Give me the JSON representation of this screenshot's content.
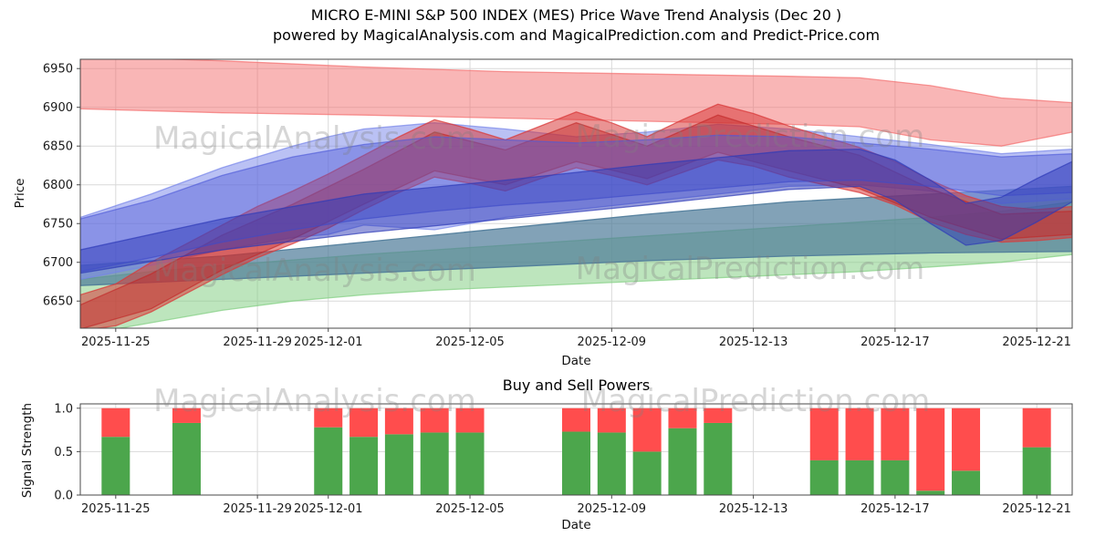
{
  "header": {
    "title_line1": "MICRO E-MINI S&P 500 INDEX (MES) Price Wave Trend Analysis (Dec 20 )",
    "title_line2": "powered by MagicalAnalysis.com and MagicalPrediction.com and Predict-Price.com"
  },
  "watermarks": {
    "analysis": "MagicalAnalysis.com",
    "prediction": "MagicalPrediction.com"
  },
  "colors": {
    "grid": "#d9d9d9",
    "frame": "#4a4a4a",
    "buy_green": "#4ca64c",
    "sell_red": "#ff4d4d"
  },
  "chart_data": {
    "price_chart": {
      "type": "area",
      "title": "MICRO E-MINI S&P 500 INDEX (MES) Price Wave Trend Analysis (Dec 20 )",
      "xlabel": "Date",
      "ylabel": "Price",
      "day0_date": "2025-11-24",
      "xlim": [
        0,
        28
      ],
      "ylim": [
        6615,
        6962
      ],
      "grid": true,
      "yticks": [
        {
          "v": 6650,
          "label": "6650"
        },
        {
          "v": 6700,
          "label": "6700"
        },
        {
          "v": 6750,
          "label": "6750"
        },
        {
          "v": 6800,
          "label": "6800"
        },
        {
          "v": 6850,
          "label": "6850"
        },
        {
          "v": 6900,
          "label": "6900"
        },
        {
          "v": 6950,
          "label": "6950"
        }
      ],
      "xticks": [
        {
          "day": 1,
          "label": "2025-11-25"
        },
        {
          "day": 5,
          "label": "2025-11-29"
        },
        {
          "day": 7,
          "label": "2025-12-01"
        },
        {
          "day": 11,
          "label": "2025-12-05"
        },
        {
          "day": 15,
          "label": "2025-12-09"
        },
        {
          "day": 19,
          "label": "2025-12-13"
        },
        {
          "day": 23,
          "label": "2025-12-17"
        },
        {
          "day": 27,
          "label": "2025-12-21"
        }
      ],
      "bands": [
        {
          "name": "upper-forecast-pink",
          "color": "#f46d6d",
          "opacity": 0.5,
          "points": [
            [
              0,
              6898,
              6966
            ],
            [
              4,
              6893,
              6960
            ],
            [
              8,
              6890,
              6952
            ],
            [
              12,
              6886,
              6946
            ],
            [
              16,
              6882,
              6943
            ],
            [
              20,
              6878,
              6940
            ],
            [
              22,
              6875,
              6938
            ],
            [
              24,
              6858,
              6928
            ],
            [
              26,
              6850,
              6912
            ],
            [
              28,
              6868,
              6906
            ]
          ]
        },
        {
          "name": "lower-support-green",
          "color": "#86d086",
          "opacity": 0.55,
          "points": [
            [
              0,
              6606,
              6678
            ],
            [
              2,
              6622,
              6688
            ],
            [
              4,
              6638,
              6696
            ],
            [
              6,
              6650,
              6703
            ],
            [
              8,
              6658,
              6710
            ],
            [
              10,
              6664,
              6716
            ],
            [
              12,
              6668,
              6722
            ],
            [
              14,
              6672,
              6728
            ],
            [
              16,
              6676,
              6734
            ],
            [
              18,
              6680,
              6740
            ],
            [
              20,
              6684,
              6746
            ],
            [
              22,
              6688,
              6752
            ],
            [
              24,
              6694,
              6758
            ],
            [
              26,
              6700,
              6766
            ],
            [
              28,
              6710,
              6778
            ]
          ]
        },
        {
          "name": "mid-slate",
          "color": "#4d7a99",
          "opacity": 0.7,
          "points": [
            [
              0,
              6670,
              6696
            ],
            [
              4,
              6678,
              6708
            ],
            [
              8,
              6686,
              6726
            ],
            [
              12,
              6694,
              6744
            ],
            [
              16,
              6702,
              6762
            ],
            [
              20,
              6708,
              6778
            ],
            [
              24,
              6712,
              6788
            ],
            [
              28,
              6714,
              6798
            ]
          ]
        },
        {
          "name": "trend-blue-wide",
          "color": "#7583ea",
          "opacity": 0.5,
          "points": [
            [
              0,
              6678,
              6758
            ],
            [
              2,
              6696,
              6788
            ],
            [
              4,
              6716,
              6822
            ],
            [
              6,
              6732,
              6850
            ],
            [
              7,
              6736,
              6862
            ],
            [
              8,
              6748,
              6872
            ],
            [
              10,
              6742,
              6880
            ],
            [
              12,
              6758,
              6872
            ],
            [
              14,
              6768,
              6862
            ],
            [
              16,
              6778,
              6868
            ],
            [
              18,
              6788,
              6878
            ],
            [
              20,
              6798,
              6872
            ],
            [
              22,
              6800,
              6862
            ],
            [
              24,
              6792,
              6852
            ],
            [
              26,
              6776,
              6840
            ],
            [
              28,
              6782,
              6846
            ]
          ]
        },
        {
          "name": "wave-red-outer",
          "color": "#d93a3a",
          "opacity": 0.55,
          "points": [
            [
              0,
              6612,
              6658
            ],
            [
              1,
              6618,
              6672
            ],
            [
              2,
              6636,
              6700
            ],
            [
              3,
              6660,
              6724
            ],
            [
              4,
              6684,
              6748
            ],
            [
              5,
              6706,
              6772
            ],
            [
              6,
              6724,
              6792
            ],
            [
              7,
              6744,
              6814
            ],
            [
              8,
              6768,
              6838
            ],
            [
              9,
              6790,
              6862
            ],
            [
              10,
              6810,
              6884
            ],
            [
              11,
              6802,
              6872
            ],
            [
              12,
              6792,
              6858
            ],
            [
              13,
              6808,
              6876
            ],
            [
              14,
              6822,
              6894
            ],
            [
              15,
              6812,
              6880
            ],
            [
              16,
              6800,
              6862
            ],
            [
              17,
              6816,
              6884
            ],
            [
              18,
              6832,
              6904
            ],
            [
              19,
              6824,
              6892
            ],
            [
              20,
              6810,
              6876
            ],
            [
              21,
              6800,
              6862
            ],
            [
              22,
              6790,
              6848
            ],
            [
              23,
              6774,
              6830
            ],
            [
              24,
              6752,
              6806
            ],
            [
              25,
              6736,
              6786
            ],
            [
              26,
              6726,
              6772
            ],
            [
              27,
              6728,
              6768
            ],
            [
              28,
              6732,
              6772
            ]
          ]
        },
        {
          "name": "wave-red-inner",
          "color": "#c22828",
          "opacity": 0.45,
          "points": [
            [
              0,
              6614,
              6645
            ],
            [
              2,
              6640,
              6685
            ],
            [
              4,
              6690,
              6735
            ],
            [
              6,
              6730,
              6775
            ],
            [
              8,
              6775,
              6820
            ],
            [
              10,
              6818,
              6868
            ],
            [
              12,
              6800,
              6845
            ],
            [
              14,
              6830,
              6880
            ],
            [
              16,
              6808,
              6850
            ],
            [
              18,
              6842,
              6890
            ],
            [
              20,
              6818,
              6862
            ],
            [
              22,
              6795,
              6838
            ],
            [
              24,
              6758,
              6795
            ],
            [
              26,
              6730,
              6762
            ],
            [
              28,
              6736,
              6766
            ]
          ]
        },
        {
          "name": "trend-blue-mid",
          "color": "#4f5ad8",
          "opacity": 0.45,
          "points": [
            [
              0,
              6688,
              6756
            ],
            [
              2,
              6706,
              6780
            ],
            [
              4,
              6726,
              6812
            ],
            [
              6,
              6742,
              6836
            ],
            [
              8,
              6756,
              6852
            ],
            [
              10,
              6766,
              6862
            ],
            [
              12,
              6774,
              6858
            ],
            [
              14,
              6780,
              6854
            ],
            [
              16,
              6788,
              6858
            ],
            [
              18,
              6796,
              6864
            ],
            [
              20,
              6804,
              6862
            ],
            [
              22,
              6806,
              6854
            ],
            [
              24,
              6798,
              6846
            ],
            [
              26,
              6786,
              6836
            ],
            [
              28,
              6790,
              6840
            ]
          ]
        },
        {
          "name": "trend-blue-dark",
          "color": "#2e3ab8",
          "opacity": 0.5,
          "points": [
            [
              0,
              6686,
              6716
            ],
            [
              4,
              6716,
              6756
            ],
            [
              8,
              6738,
              6788
            ],
            [
              12,
              6756,
              6806
            ],
            [
              16,
              6774,
              6826
            ],
            [
              20,
              6794,
              6844
            ],
            [
              22,
              6798,
              6846
            ],
            [
              23,
              6780,
              6832
            ],
            [
              24,
              6750,
              6806
            ],
            [
              25,
              6722,
              6776
            ],
            [
              26,
              6728,
              6784
            ],
            [
              27,
              6752,
              6808
            ],
            [
              28,
              6778,
              6830
            ]
          ]
        }
      ]
    },
    "signal_chart": {
      "type": "bar",
      "title": "Buy and Sell Powers",
      "xlabel": "Date",
      "ylabel": "Signal Strength",
      "day0_date": "2025-11-24",
      "xlim": [
        0,
        28
      ],
      "ylim": [
        0,
        1.05
      ],
      "grid": true,
      "stacked": true,
      "yticks": [
        {
          "v": 0.0,
          "label": "0.0"
        },
        {
          "v": 0.5,
          "label": "0.5"
        },
        {
          "v": 1.0,
          "label": "1.0"
        }
      ],
      "xticks": [
        {
          "day": 1,
          "label": "2025-11-25"
        },
        {
          "day": 5,
          "label": "2025-11-29"
        },
        {
          "day": 7,
          "label": "2025-12-01"
        },
        {
          "day": 11,
          "label": "2025-12-05"
        },
        {
          "day": 15,
          "label": "2025-12-09"
        },
        {
          "day": 19,
          "label": "2025-12-13"
        },
        {
          "day": 23,
          "label": "2025-12-17"
        },
        {
          "day": 27,
          "label": "2025-12-21"
        }
      ],
      "series": [
        {
          "name": "buy",
          "color": "#4ca64c"
        },
        {
          "name": "sell",
          "color": "#ff4d4d"
        }
      ],
      "bars": [
        {
          "date": "2025-11-25",
          "day": 1,
          "buy": 0.67,
          "sell": 0.33
        },
        {
          "date": "2025-11-27",
          "day": 3,
          "buy": 0.83,
          "sell": 0.17
        },
        {
          "date": "2025-12-01",
          "day": 7,
          "buy": 0.78,
          "sell": 0.22
        },
        {
          "date": "2025-12-02",
          "day": 8,
          "buy": 0.67,
          "sell": 0.33
        },
        {
          "date": "2025-12-03",
          "day": 9,
          "buy": 0.7,
          "sell": 0.3
        },
        {
          "date": "2025-12-04",
          "day": 10,
          "buy": 0.72,
          "sell": 0.28
        },
        {
          "date": "2025-12-05",
          "day": 11,
          "buy": 0.72,
          "sell": 0.28
        },
        {
          "date": "2025-12-08",
          "day": 14,
          "buy": 0.73,
          "sell": 0.27
        },
        {
          "date": "2025-12-09",
          "day": 15,
          "buy": 0.72,
          "sell": 0.28
        },
        {
          "date": "2025-12-10",
          "day": 16,
          "buy": 0.5,
          "sell": 0.5
        },
        {
          "date": "2025-12-11",
          "day": 17,
          "buy": 0.77,
          "sell": 0.23
        },
        {
          "date": "2025-12-12",
          "day": 18,
          "buy": 0.83,
          "sell": 0.17
        },
        {
          "date": "2025-12-15",
          "day": 21,
          "buy": 0.4,
          "sell": 0.6
        },
        {
          "date": "2025-12-16",
          "day": 22,
          "buy": 0.4,
          "sell": 0.6
        },
        {
          "date": "2025-12-17",
          "day": 23,
          "buy": 0.4,
          "sell": 0.6
        },
        {
          "date": "2025-12-18",
          "day": 24,
          "buy": 0.05,
          "sell": 0.95
        },
        {
          "date": "2025-12-19",
          "day": 25,
          "buy": 0.28,
          "sell": 0.72
        },
        {
          "date": "2025-12-21",
          "day": 27,
          "buy": 0.55,
          "sell": 0.45
        }
      ]
    }
  }
}
